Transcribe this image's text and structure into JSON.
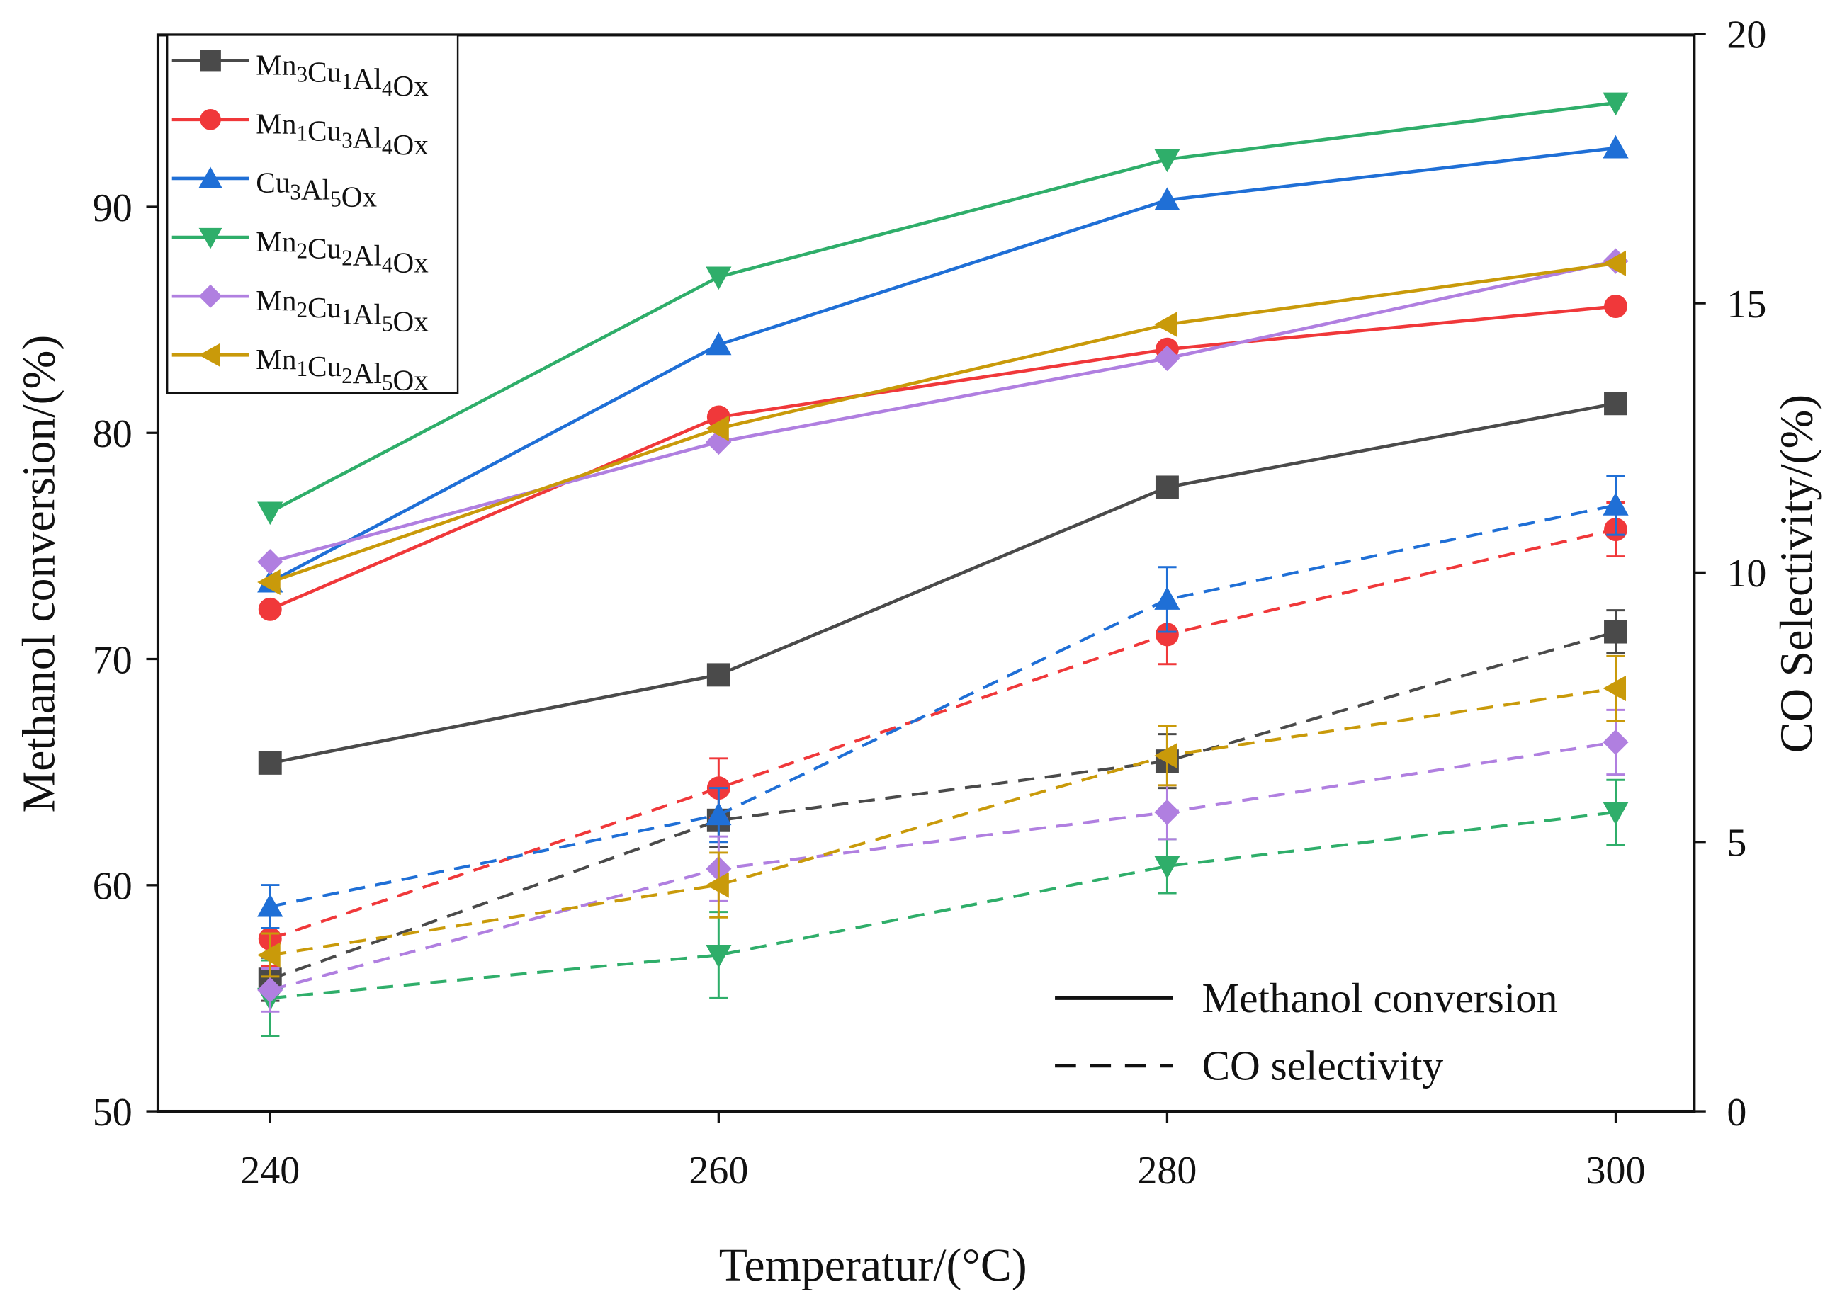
{
  "chart_data": {
    "type": "line",
    "title": "",
    "xlabel": "Temperatur/(°C)",
    "ylabel": "Methanol conversion/(%)",
    "y2label": "CO Selectivity/(%)",
    "x": [
      240,
      260,
      280,
      300
    ],
    "xticks": [
      "240",
      "260",
      "280",
      "300"
    ],
    "xlim": [
      235,
      303.5
    ],
    "ylim": [
      50,
      97.6
    ],
    "yticks": [
      "50",
      "60",
      "70",
      "80",
      "90"
    ],
    "y2lim": [
      0,
      20
    ],
    "y2ticks": [
      "0",
      "5",
      "10",
      "15",
      "20"
    ],
    "grid": false,
    "legend_placement": "top-left",
    "style_legend": {
      "placement": "bottom-right",
      "entries": [
        {
          "label": "Methanol conversion",
          "style": "solid"
        },
        {
          "label": "CO selectivity",
          "style": "dashed"
        }
      ]
    },
    "series": [
      {
        "name": "Mn3Cu1Al4Ox",
        "color": "#4a4a4a",
        "marker": "square",
        "conversion": [
          65.4,
          69.3,
          77.6,
          81.3
        ],
        "co_selectivity": [
          2.45,
          5.4,
          6.5,
          8.9
        ],
        "co_error": [
          0.4,
          0.5,
          0.5,
          0.4
        ]
      },
      {
        "name": "Mn1Cu3Al4Ox",
        "color": "#f0383a",
        "marker": "circle",
        "conversion": [
          72.2,
          80.7,
          83.7,
          85.6
        ],
        "co_selectivity": [
          3.2,
          6.0,
          8.85,
          10.8
        ],
        "co_error": [
          0.5,
          0.55,
          0.55,
          0.5
        ]
      },
      {
        "name": "Cu3Al5Ox",
        "color": "#1f6fd6",
        "marker": "triangle-up",
        "conversion": [
          73.4,
          83.9,
          90.3,
          92.6
        ],
        "co_selectivity": [
          3.8,
          5.5,
          9.5,
          11.25
        ],
        "co_error": [
          0.4,
          0.5,
          0.6,
          0.55
        ]
      },
      {
        "name": "Mn2Cu2Al4Ox",
        "color": "#2fae6a",
        "marker": "triangle-down",
        "conversion": [
          76.5,
          86.9,
          92.1,
          94.6
        ],
        "co_selectivity": [
          2.1,
          2.9,
          4.55,
          5.55
        ],
        "co_error": [
          0.7,
          0.8,
          0.5,
          0.6
        ]
      },
      {
        "name": "Mn2Cu1Al5Ox",
        "color": "#b07fe0",
        "marker": "diamond",
        "conversion": [
          74.3,
          79.6,
          83.3,
          87.6
        ],
        "co_selectivity": [
          2.25,
          4.5,
          5.55,
          6.85
        ],
        "co_error": [
          0.4,
          0.6,
          0.5,
          0.6
        ]
      },
      {
        "name": "Mn1Cu2Al5Ox",
        "color": "#c99a0a",
        "marker": "triangle-left",
        "conversion": [
          73.4,
          80.2,
          84.8,
          87.5
        ],
        "co_selectivity": [
          2.9,
          4.2,
          6.6,
          7.85
        ],
        "co_error": [
          0.4,
          0.6,
          0.55,
          0.6
        ]
      }
    ]
  }
}
